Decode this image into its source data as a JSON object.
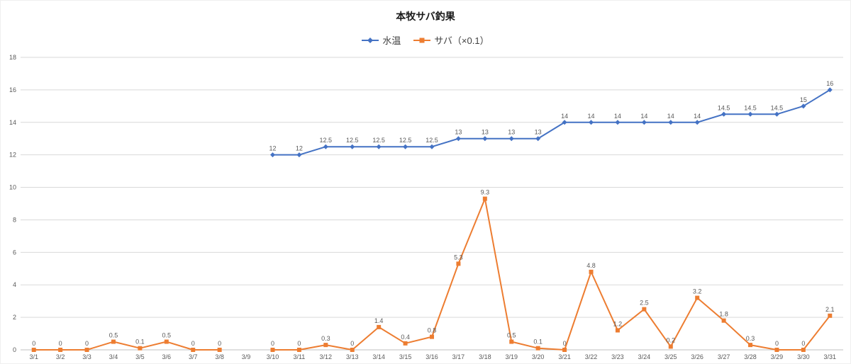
{
  "chart_data": {
    "type": "line",
    "title": "本牧サバ釣果",
    "categories": [
      "3/1",
      "3/2",
      "3/3",
      "3/4",
      "3/5",
      "3/6",
      "3/7",
      "3/8",
      "3/9",
      "3/10",
      "3/11",
      "3/12",
      "3/13",
      "3/14",
      "3/15",
      "3/16",
      "3/17",
      "3/18",
      "3/19",
      "3/20",
      "3/21",
      "3/22",
      "3/23",
      "3/24",
      "3/25",
      "3/26",
      "3/27",
      "3/28",
      "3/29",
      "3/30",
      "3/31"
    ],
    "series": [
      {
        "name": "水温",
        "color": "#4472c4",
        "marker": "diamond",
        "values": [
          null,
          null,
          null,
          null,
          null,
          null,
          null,
          null,
          null,
          12,
          12,
          12.5,
          12.5,
          12.5,
          12.5,
          12.5,
          13,
          13,
          13,
          13,
          14,
          14,
          14,
          14,
          14,
          14,
          14.5,
          14.5,
          14.5,
          15,
          16
        ]
      },
      {
        "name": "サバ（×0.1）",
        "color": "#ed7d31",
        "marker": "square",
        "values": [
          0,
          0,
          0,
          0.5,
          0.1,
          0.5,
          0,
          0,
          null,
          0,
          0,
          0.3,
          0,
          1.4,
          0.4,
          0.8,
          5.3,
          9.3,
          0.5,
          0.1,
          0,
          4.8,
          1.2,
          2.5,
          0.2,
          3.2,
          1.8,
          0.3,
          0,
          0,
          2.1
        ]
      }
    ],
    "ylim": [
      0,
      18
    ],
    "ytick_step": 2,
    "grid": true,
    "legend_position": "top",
    "data_labels": true,
    "colors": {
      "gridline": "#d9d9d9",
      "axis_line": "#bfbfbf",
      "label_text": "#595959",
      "title_text": "#1a1a1a"
    }
  }
}
